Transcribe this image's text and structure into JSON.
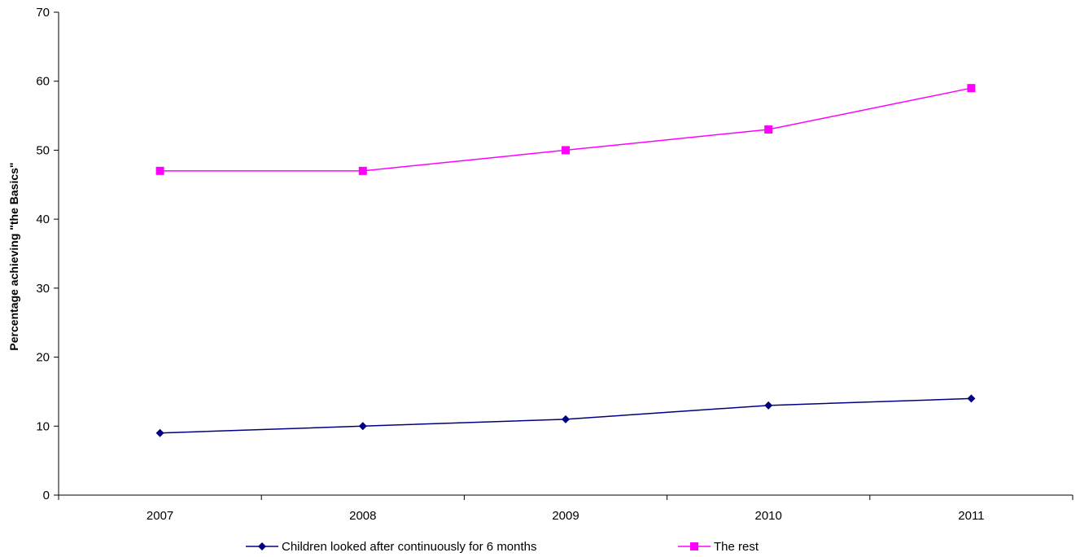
{
  "chart_data": {
    "type": "line",
    "title": "",
    "xlabel": "",
    "ylabel": "Percentage achieving \"the Basics\"",
    "categories": [
      "2007",
      "2008",
      "2009",
      "2010",
      "2011"
    ],
    "ylim": [
      0,
      70
    ],
    "yticks": [
      0,
      10,
      20,
      30,
      40,
      50,
      60,
      70
    ],
    "grid": false,
    "legend_position": "bottom",
    "series": [
      {
        "name": "Children looked after continuously for 6 months",
        "values": [
          9,
          10,
          11,
          13,
          14
        ],
        "color": "#000080",
        "marker": "diamond"
      },
      {
        "name": "The rest",
        "values": [
          47,
          47,
          50,
          53,
          59
        ],
        "color": "#ff00ff",
        "marker": "square"
      }
    ]
  }
}
